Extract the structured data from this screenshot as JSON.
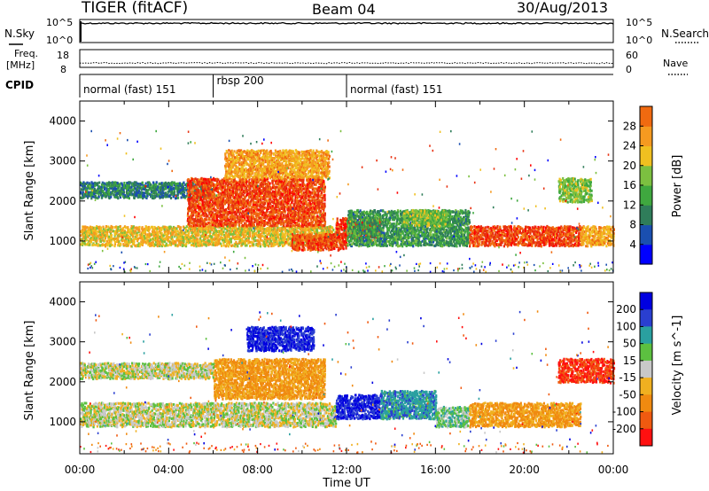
{
  "header": {
    "station": "TIGER (fitACF)",
    "beam": "Beam 04",
    "date": "30/Aug/2013"
  },
  "left_labels": {
    "nsky": "N.Sky",
    "freq": "Freq.",
    "mhz": "[MHz]",
    "cpid": "CPID"
  },
  "right_labels": {
    "nsearch": "N.Search",
    "nave": "Nave"
  },
  "noise_axis": {
    "top": "10^5",
    "bottom": "10^0"
  },
  "freq_axis": {
    "left_ticks": [
      "18",
      "8"
    ],
    "right_ticks": [
      "60",
      "0"
    ]
  },
  "cpid_segments": [
    {
      "label": "normal (fast) 151",
      "start_hour": 0,
      "end_hour": 6
    },
    {
      "label": "rbsp 200",
      "start_hour": 6,
      "end_hour": 12
    },
    {
      "label": "normal (fast) 151",
      "start_hour": 12,
      "end_hour": 24
    }
  ],
  "x_axis": {
    "label": "Time UT",
    "ticks": [
      "00:00",
      "04:00",
      "08:00",
      "12:00",
      "16:00",
      "20:00",
      "00:00"
    ]
  },
  "y_axis": {
    "label": "Slant Range [km]",
    "ticks": [
      "1000",
      "2000",
      "3000",
      "4000"
    ]
  },
  "power_scale": {
    "label": "Power [dB]",
    "ticks": [
      "4",
      "8",
      "12",
      "16",
      "20",
      "24",
      "28"
    ],
    "colors": [
      "#0000ff",
      "#1a4fb0",
      "#2f7d5a",
      "#3fa83f",
      "#7cc040",
      "#f0c020",
      "#f59a20",
      "#f06a10",
      "#e83010",
      "#ff0000"
    ]
  },
  "velocity_scale": {
    "label": "Velocity [m s^-1]",
    "ticks": [
      "200",
      "100",
      "50",
      "15",
      "-15",
      "-50",
      "-100",
      "-200"
    ],
    "colors": [
      "#0000e0",
      "#2a3fd0",
      "#2aa0a0",
      "#5cc040",
      "#c8c8c8",
      "#f0b020",
      "#f08a10",
      "#f05a10",
      "#ff1010"
    ]
  },
  "chart_data": [
    {
      "type": "heatmap",
      "title": "Power",
      "xlabel": "Time UT",
      "ylabel": "Slant Range [km]",
      "x_range_hours": [
        0,
        24
      ],
      "y_range_km": [
        200,
        4500
      ],
      "colorbar": {
        "label": "Power [dB]",
        "range": [
          0,
          32
        ]
      },
      "regions": [
        {
          "t0": 0.0,
          "t1": 11.5,
          "r0": 900,
          "r1": 1400,
          "value": 18
        },
        {
          "t0": 0.0,
          "t1": 6.0,
          "r0": 2100,
          "r1": 2500,
          "value": 8
        },
        {
          "t0": 4.8,
          "t1": 11.0,
          "r0": 1400,
          "r1": 2600,
          "value": 26
        },
        {
          "t0": 6.5,
          "t1": 11.2,
          "r0": 2600,
          "r1": 3300,
          "value": 20
        },
        {
          "t0": 9.5,
          "t1": 12.0,
          "r0": 800,
          "r1": 1200,
          "value": 26
        },
        {
          "t0": 11.5,
          "t1": 13.5,
          "r0": 1100,
          "r1": 1600,
          "value": 28
        },
        {
          "t0": 12.0,
          "t1": 17.5,
          "r0": 900,
          "r1": 1800,
          "value": 10
        },
        {
          "t0": 14.5,
          "t1": 16.5,
          "r0": 1400,
          "r1": 1800,
          "value": 14
        },
        {
          "t0": 17.5,
          "t1": 22.5,
          "r0": 900,
          "r1": 1400,
          "value": 26
        },
        {
          "t0": 22.5,
          "t1": 24.0,
          "r0": 900,
          "r1": 1400,
          "value": 20
        },
        {
          "t0": 21.5,
          "t1": 23.0,
          "r0": 2000,
          "r1": 2600,
          "value": 14
        }
      ]
    },
    {
      "type": "heatmap",
      "title": "Velocity",
      "xlabel": "Time UT",
      "ylabel": "Slant Range [km]",
      "x_range_hours": [
        0,
        24
      ],
      "y_range_km": [
        200,
        4500
      ],
      "colorbar": {
        "label": "Velocity [m s^-1]",
        "range": [
          -250,
          250
        ]
      },
      "regions": [
        {
          "t0": 0.0,
          "t1": 11.5,
          "r0": 900,
          "r1": 1500,
          "value": 0
        },
        {
          "t0": 6.0,
          "t1": 11.0,
          "r0": 1600,
          "r1": 2600,
          "value": -60
        },
        {
          "t0": 7.5,
          "t1": 10.5,
          "r0": 2800,
          "r1": 3400,
          "value": 200
        },
        {
          "t0": 11.5,
          "t1": 13.5,
          "r0": 1100,
          "r1": 1700,
          "value": 200
        },
        {
          "t0": 13.5,
          "t1": 16.0,
          "r0": 1100,
          "r1": 1800,
          "value": 80
        },
        {
          "t0": 16.0,
          "t1": 17.5,
          "r0": 900,
          "r1": 1400,
          "value": 30
        },
        {
          "t0": 17.5,
          "t1": 22.5,
          "r0": 900,
          "r1": 1500,
          "value": -60
        },
        {
          "t0": 21.5,
          "t1": 24.0,
          "r0": 2000,
          "r1": 2600,
          "value": -200
        },
        {
          "t0": 0.0,
          "t1": 6.0,
          "r0": 2100,
          "r1": 2500,
          "value": 0
        }
      ]
    }
  ]
}
